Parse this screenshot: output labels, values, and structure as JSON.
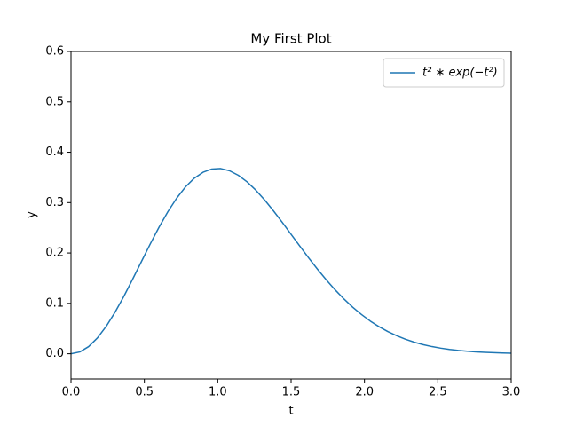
{
  "chart_data": {
    "type": "line",
    "title": "My First Plot",
    "x_label": "t",
    "y_label": "y",
    "x": [
      0,
      0.06,
      0.12,
      0.18,
      0.24,
      0.3,
      0.36,
      0.42,
      0.48,
      0.54,
      0.6,
      0.66,
      0.72,
      0.78,
      0.84,
      0.9,
      0.96,
      1.02,
      1.08,
      1.14,
      1.2,
      1.26,
      1.32,
      1.38,
      1.44,
      1.5,
      1.56,
      1.62,
      1.68,
      1.74,
      1.8,
      1.86,
      1.92,
      1.98,
      2.04,
      2.1,
      2.16,
      2.22,
      2.28,
      2.34,
      2.4,
      2.46,
      2.52,
      2.58,
      2.64,
      2.7,
      2.76,
      2.82,
      2.88,
      2.94,
      3.0
    ],
    "series": [
      {
        "name": "t² ∗ exp(−t²)",
        "color": "#1f77b4",
        "values": [
          0,
          0.0036,
          0.0142,
          0.0314,
          0.0544,
          0.0823,
          0.1138,
          0.1479,
          0.183,
          0.2178,
          0.2512,
          0.2818,
          0.3087,
          0.3311,
          0.3484,
          0.3603,
          0.3667,
          0.3676,
          0.3633,
          0.3543,
          0.3412,
          0.3246,
          0.3051,
          0.2836,
          0.2608,
          0.2371,
          0.2135,
          0.1902,
          0.1678,
          0.1466,
          0.1269,
          0.1088,
          0.0924,
          0.0778,
          0.0648,
          0.0536,
          0.0439,
          0.0357,
          0.0287,
          0.0229,
          0.0181,
          0.0142,
          0.0111,
          0.0086,
          0.0066,
          0.005,
          0.0037,
          0.0028,
          0.0021,
          0.0015,
          0.0011
        ]
      }
    ],
    "xlim": [
      0,
      3
    ],
    "ylim": [
      -0.05,
      0.6
    ],
    "xticks": [
      {
        "value": 0,
        "label": "0.0"
      },
      0.5,
      {
        "value": 1,
        "label": "1.0"
      },
      1.5,
      {
        "value": 2,
        "label": "2.0"
      },
      2.5,
      {
        "value": 3,
        "label": "3.0"
      }
    ],
    "yticks": [
      {
        "value": 0,
        "label": "0.0"
      },
      0.1,
      0.2,
      0.3,
      0.4,
      0.5,
      0.6
    ],
    "grid": false,
    "legend": "upper right"
  }
}
